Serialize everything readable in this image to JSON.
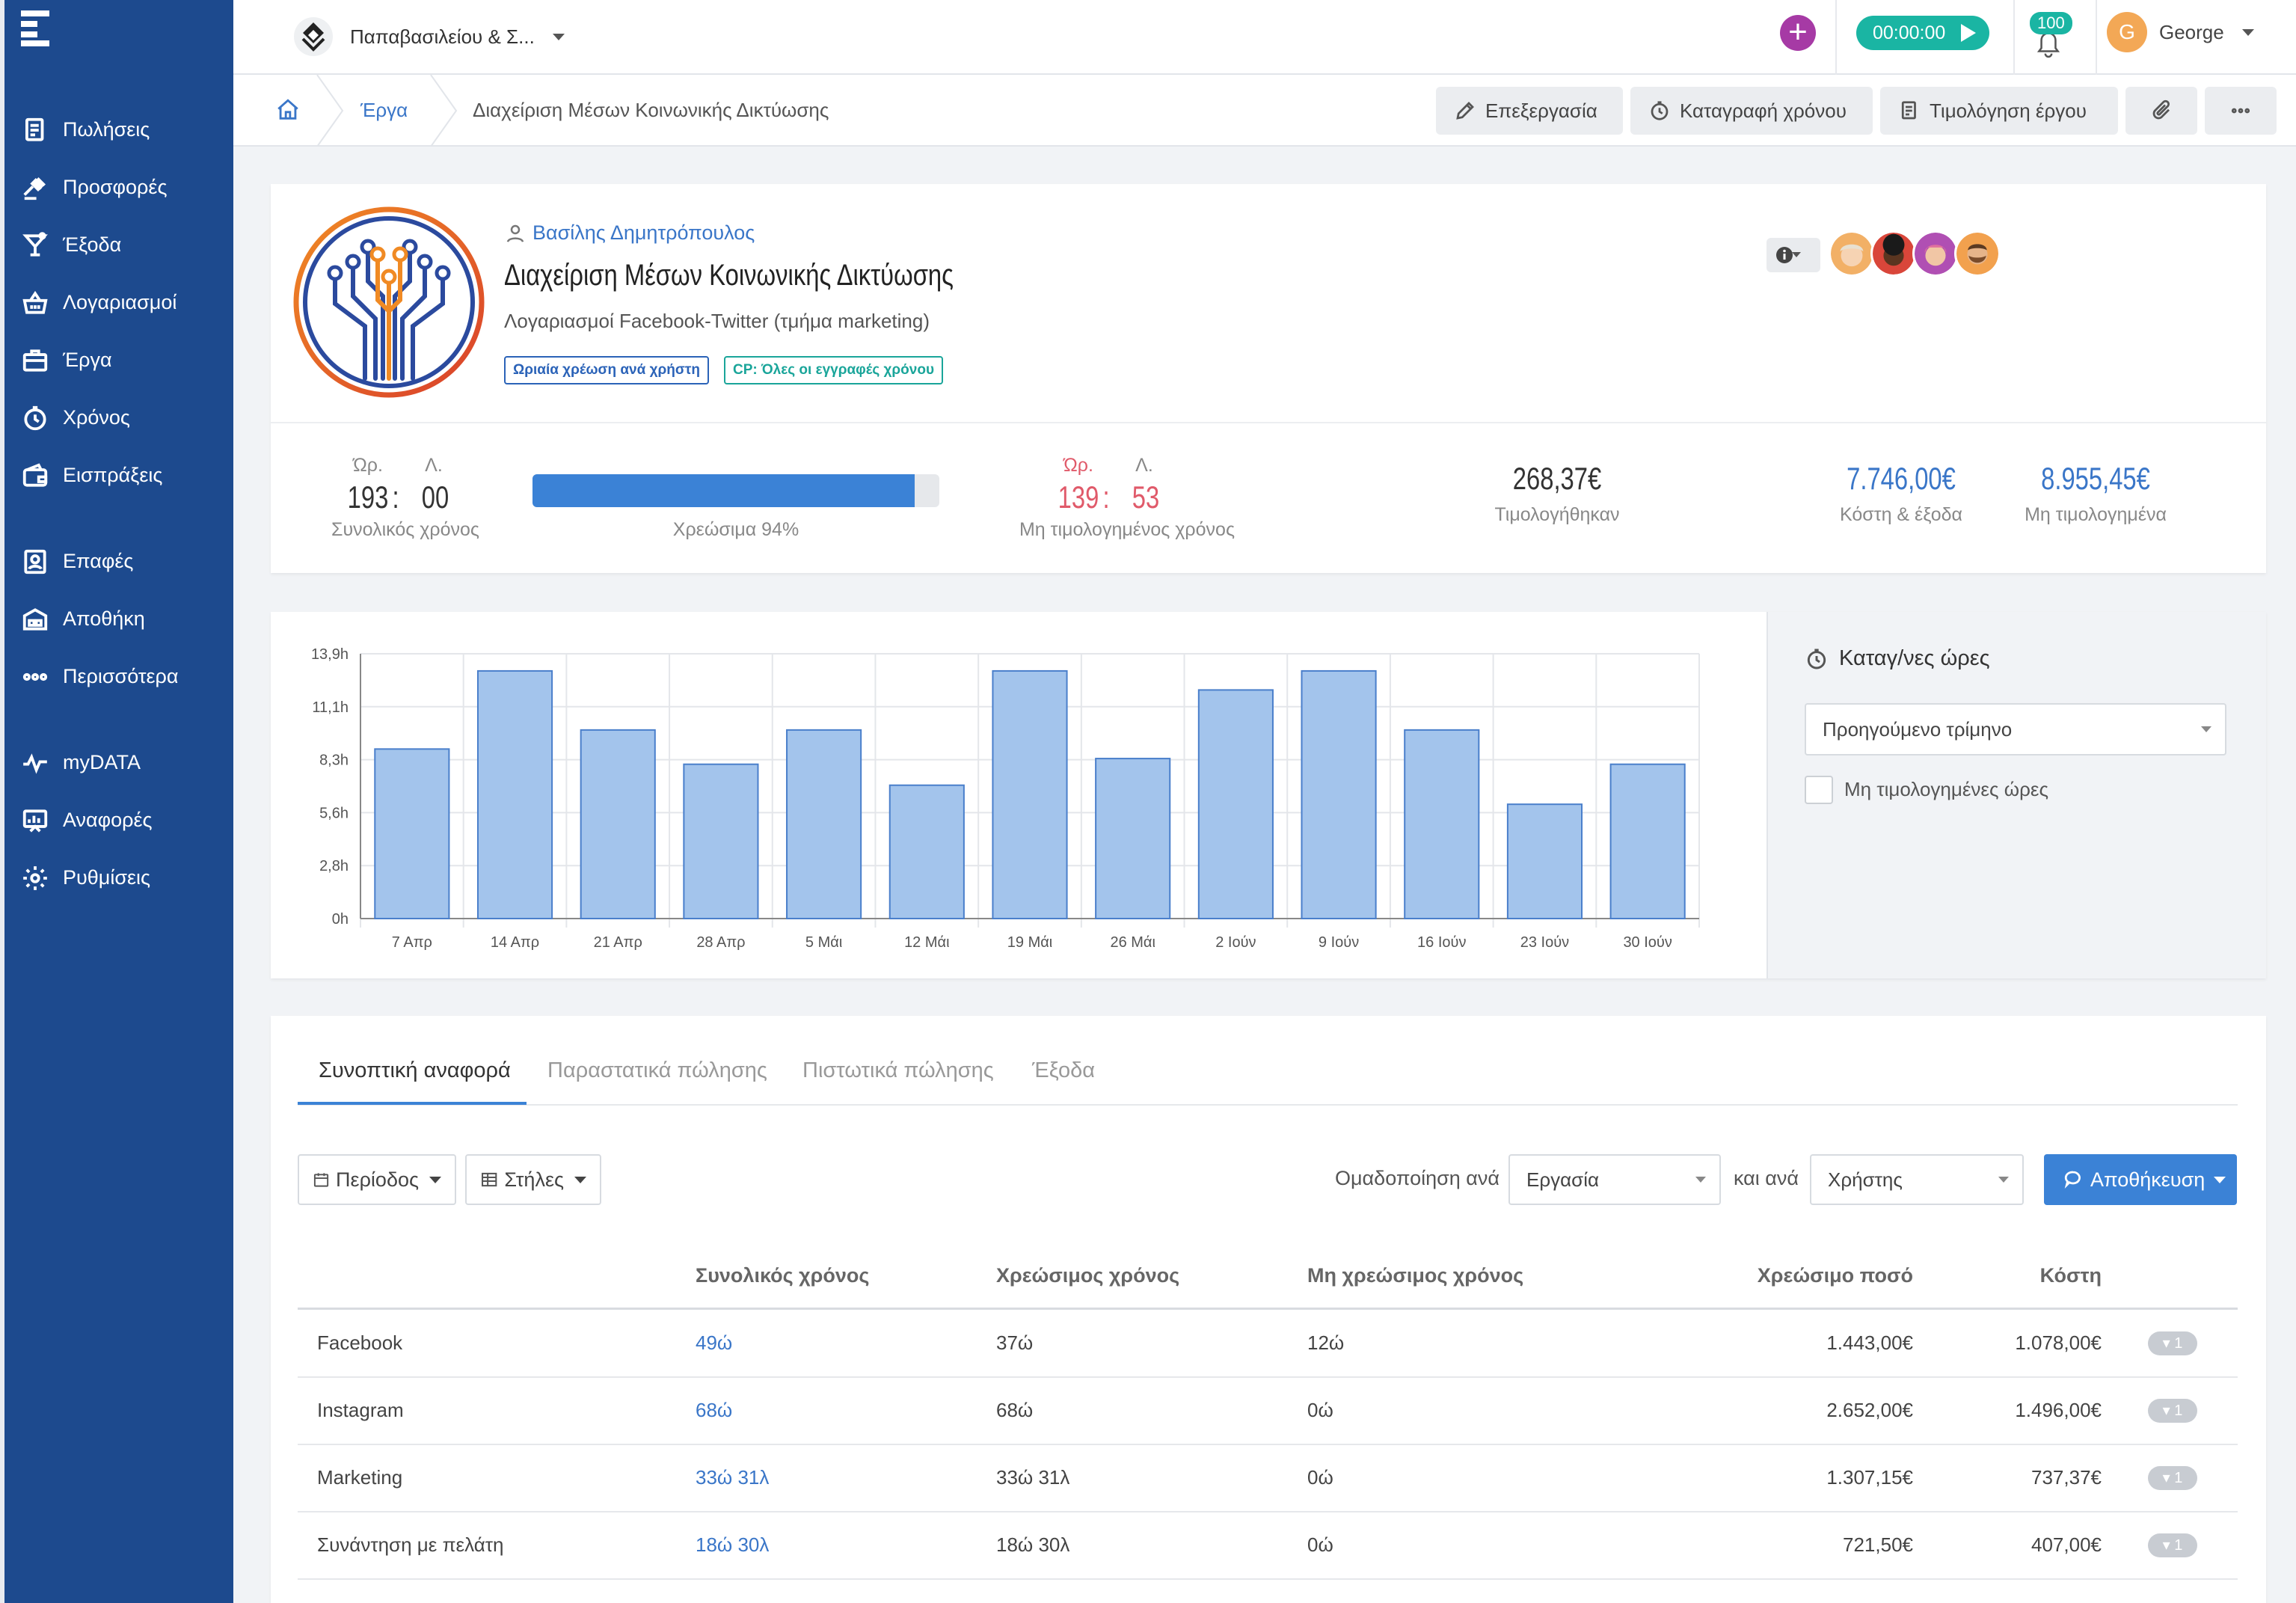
{
  "sidebar": {
    "items": [
      {
        "label": "Πωλήσεις",
        "icon": "sales-doc-icon"
      },
      {
        "label": "Προσφορές",
        "icon": "gavel-icon"
      },
      {
        "label": "Έξοδα",
        "icon": "cocktail-icon"
      },
      {
        "label": "Λογαριασμοί",
        "icon": "basket-icon"
      },
      {
        "label": "Έργα",
        "icon": "briefcase-icon"
      },
      {
        "label": "Χρόνος",
        "icon": "stopwatch-icon"
      },
      {
        "label": "Εισπράξεις",
        "icon": "wallet-icon"
      },
      {
        "label": "Επαφές",
        "icon": "contacts-icon"
      },
      {
        "label": "Αποθήκη",
        "icon": "warehouse-icon"
      },
      {
        "label": "Περισσότερα",
        "icon": "more-dots-icon"
      },
      {
        "label": "myDATA",
        "icon": "pulse-icon"
      },
      {
        "label": "Αναφορές",
        "icon": "reports-icon"
      },
      {
        "label": "Ρυθμίσεις",
        "icon": "gear-icon"
      }
    ]
  },
  "topbar": {
    "company": "Παπαβασιλείου & Σ...",
    "timer": "00:00:00",
    "notifications": "100",
    "user_initial": "G",
    "user_name": "George"
  },
  "breadcrumb": {
    "link": "Έργα",
    "current": "Διαχείριση Μέσων Κοινωνικής Δικτύωσης"
  },
  "actions": {
    "edit": "Επεξεργασία",
    "log_time": "Καταγραφή χρόνου",
    "invoice": "Τιμολόγηση έργου"
  },
  "project": {
    "owner": "Βασίλης Δημητρόπουλος",
    "title": "Διαχείριση Μέσων Κοινωνικής Δικτύωσης",
    "description": "Λογαριασμοί Facebook-Twitter (τμήμα marketing)",
    "tags": [
      "Ωριαία χρέωση ανά χρήστη",
      "CP: Όλες οι εγγραφές χρόνου"
    ]
  },
  "stats": {
    "hours_label": "Ώρ.",
    "minutes_label": "Λ.",
    "total_hours": "193",
    "total_minutes": "00",
    "total_label": "Συνολικός χρόνος",
    "billable_label": "Χρεώσιμα 94%",
    "billable_fraction": 0.94,
    "unbilled_hours": "139",
    "unbilled_minutes": "53",
    "unbilled_label": "Μη τιμολογημένος χρόνος",
    "invoiced_value": "268,37€",
    "invoiced_label": "Τιμολογήθηκαν",
    "costs_value": "7.746,00€",
    "costs_label": "Κόστη & έξοδα",
    "uninvoiced_value": "8.955,45€",
    "uninvoiced_label": "Μη τιμολογημένα"
  },
  "chart_data": {
    "type": "bar",
    "categories": [
      "7 Απρ",
      "14 Απρ",
      "21 Απρ",
      "28 Απρ",
      "5 Μάι",
      "12 Μάι",
      "19 Μάι",
      "26 Μάι",
      "2 Ιούν",
      "9 Ιούν",
      "16 Ιούν",
      "23 Ιούν",
      "30 Ιούν"
    ],
    "values": [
      8.9,
      13.0,
      9.9,
      8.1,
      9.9,
      7.0,
      13.0,
      8.4,
      12.0,
      13.0,
      9.9,
      6.0,
      8.1
    ],
    "yticks": [
      "0h",
      "2,8h",
      "5,6h",
      "8,3h",
      "11,1h",
      "13,9h"
    ],
    "ylim": [
      0,
      13.9
    ],
    "grid": true,
    "bar_color": "#a3c4ec",
    "bar_border": "#4a7fcb"
  },
  "side_panel": {
    "title": "Καταγ/νες ώρες",
    "period": "Προηγούμενο τρίμηνο",
    "unbilled_only": "Μη τιμολογημένες ώρες"
  },
  "tabs": [
    "Συνοπτική αναφορά",
    "Παραστατικά πώλησης",
    "Πιστωτικά πώλησης",
    "Έξοδα"
  ],
  "toolbar": {
    "period": "Περίοδος",
    "columns": "Στήλες",
    "group_by_label": "Ομαδοποίηση ανά",
    "group_by": "Εργασία",
    "and_by_label": "και ανά",
    "and_by": "Χρήστης",
    "save": "Αποθήκευση"
  },
  "table": {
    "headers": [
      "Συνολικός χρόνος",
      "Χρεώσιμος χρόνος",
      "Μη χρεώσιμος χρόνος",
      "Χρεώσιμο ποσό",
      "Κόστη"
    ],
    "rows": [
      {
        "name": "Facebook",
        "total": "49ώ",
        "billable": "37ώ",
        "non_billable": "12ώ",
        "amount": "1.443,00€",
        "cost": "1.078,00€",
        "badge": "1"
      },
      {
        "name": "Instagram",
        "total": "68ώ",
        "billable": "68ώ",
        "non_billable": "0ώ",
        "amount": "2.652,00€",
        "cost": "1.496,00€",
        "badge": "1"
      },
      {
        "name": "Marketing",
        "total": "33ώ 31λ",
        "billable": "33ώ 31λ",
        "non_billable": "0ώ",
        "amount": "1.307,15€",
        "cost": "737,37€",
        "badge": "1"
      },
      {
        "name": "Συνάντηση με πελάτη",
        "total": "18ώ 30λ",
        "billable": "18ώ 30λ",
        "non_billable": "0ώ",
        "amount": "721,50€",
        "cost": "407,00€",
        "badge": "1"
      }
    ]
  }
}
